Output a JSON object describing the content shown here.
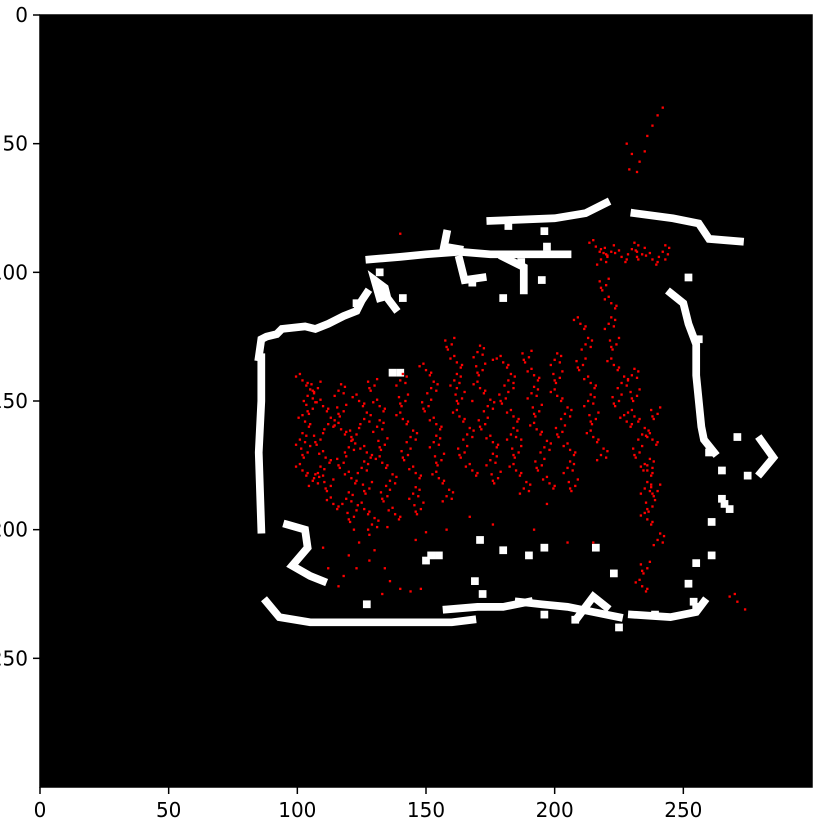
{
  "chart_data": {
    "type": "scatter",
    "title": "",
    "xlabel": "",
    "ylabel": "",
    "xlim": [
      0,
      300
    ],
    "ylim": [
      300,
      0
    ],
    "grid": false,
    "background": "#000000",
    "x_ticks": [
      0,
      50,
      100,
      150,
      200,
      250
    ],
    "x_tick_labels": [
      "0",
      "50",
      "100",
      "150",
      "200",
      "250"
    ],
    "y_ticks": [
      0,
      50,
      100,
      150,
      200,
      250
    ],
    "y_tick_labels": [
      "0",
      "50",
      "100",
      "150",
      "200",
      "250"
    ],
    "occupancy_color": "#ffffff",
    "point_color": "#ff0000",
    "occupied_cells_note_free": true,
    "occupied_segments": [
      [
        [
          85,
          133
        ],
        [
          86,
          126
        ],
        [
          88,
          125
        ],
        [
          92,
          124
        ],
        [
          94,
          122
        ],
        [
          103,
          121
        ],
        [
          107,
          122
        ],
        [
          112,
          120
        ],
        [
          118,
          117
        ],
        [
          123,
          115
        ],
        [
          125,
          111
        ],
        [
          127,
          108
        ]
      ],
      [
        [
          86,
          133
        ],
        [
          86,
          150
        ],
        [
          85,
          170
        ],
        [
          86,
          200
        ]
      ],
      [
        [
          128,
          95
        ],
        [
          140,
          94
        ],
        [
          150,
          93
        ],
        [
          163,
          92
        ],
        [
          175,
          93
        ],
        [
          190,
          93
        ],
        [
          205,
          93
        ]
      ],
      [
        [
          175,
          80
        ],
        [
          200,
          79
        ],
        [
          212,
          77
        ],
        [
          220,
          73
        ]
      ],
      [
        [
          231,
          77
        ],
        [
          246,
          79
        ],
        [
          256,
          81
        ],
        [
          260,
          87
        ],
        [
          272,
          88
        ]
      ],
      [
        [
          245,
          108
        ],
        [
          250,
          112
        ],
        [
          252,
          120
        ],
        [
          255,
          128
        ],
        [
          255,
          140
        ],
        [
          256,
          150
        ],
        [
          257,
          160
        ],
        [
          258,
          165
        ],
        [
          262,
          170
        ]
      ],
      [
        [
          88,
          228
        ],
        [
          93,
          234
        ],
        [
          105,
          236
        ],
        [
          130,
          236
        ],
        [
          148,
          236
        ],
        [
          160,
          236
        ],
        [
          168,
          235
        ]
      ],
      [
        [
          186,
          228
        ],
        [
          195,
          229
        ],
        [
          205,
          230
        ],
        [
          215,
          232
        ],
        [
          225,
          234
        ]
      ],
      [
        [
          230,
          233
        ],
        [
          245,
          234
        ],
        [
          255,
          232
        ],
        [
          258,
          228
        ]
      ],
      [
        [
          209,
          234
        ],
        [
          215,
          226
        ],
        [
          220,
          230
        ]
      ],
      [
        [
          158,
          231
        ],
        [
          170,
          230
        ],
        [
          180,
          230
        ],
        [
          190,
          228
        ]
      ],
      [
        [
          280,
          165
        ],
        [
          285,
          172
        ],
        [
          280,
          178
        ]
      ],
      [
        [
          96,
          198
        ],
        [
          103,
          200
        ],
        [
          104,
          207
        ],
        [
          98,
          214
        ],
        [
          105,
          218
        ],
        [
          110,
          220
        ]
      ],
      [
        [
          138,
          114
        ],
        [
          135,
          110
        ],
        [
          134,
          106
        ],
        [
          130,
          103
        ],
        [
          132,
          110
        ]
      ],
      [
        [
          180,
          94
        ],
        [
          188,
          98
        ],
        [
          188,
          107
        ]
      ],
      [
        [
          158,
          85
        ],
        [
          157,
          90
        ],
        [
          163,
          91
        ]
      ],
      [
        [
          163,
          95
        ],
        [
          165,
          103
        ],
        [
          172,
          102
        ]
      ]
    ],
    "occupied_blocks": [
      [
        132,
        100
      ],
      [
        141,
        110
      ],
      [
        168,
        104
      ],
      [
        180,
        110
      ],
      [
        187,
        96
      ],
      [
        195,
        103
      ],
      [
        197,
        90
      ],
      [
        182,
        82
      ],
      [
        196,
        84
      ],
      [
        252,
        102
      ],
      [
        256,
        126
      ],
      [
        260,
        170
      ],
      [
        265,
        177
      ],
      [
        265,
        188
      ],
      [
        268,
        192
      ],
      [
        266,
        190
      ],
      [
        261,
        197
      ],
      [
        261,
        210
      ],
      [
        255,
        213
      ],
      [
        252,
        221
      ],
      [
        254,
        228
      ],
      [
        275,
        179
      ],
      [
        271,
        164
      ],
      [
        137,
        139
      ],
      [
        140,
        139
      ],
      [
        123,
        112
      ],
      [
        152,
        210
      ],
      [
        155,
        210
      ],
      [
        150,
        212
      ],
      [
        171,
        204
      ],
      [
        180,
        208
      ],
      [
        190,
        210
      ],
      [
        196,
        207
      ],
      [
        216,
        207
      ],
      [
        223,
        217
      ],
      [
        127,
        229
      ],
      [
        169,
        220
      ],
      [
        172,
        225
      ],
      [
        196,
        233
      ],
      [
        208,
        235
      ],
      [
        225,
        238
      ],
      [
        239,
        233
      ],
      [
        255,
        230
      ]
    ],
    "points_dense": [
      [
        102,
        142
      ],
      [
        104,
        148
      ],
      [
        106,
        153
      ],
      [
        103,
        158
      ],
      [
        101,
        165
      ],
      [
        104,
        170
      ],
      [
        102,
        177
      ],
      [
        106,
        181
      ],
      [
        108,
        145
      ],
      [
        110,
        152
      ],
      [
        112,
        159
      ],
      [
        109,
        165
      ],
      [
        111,
        172
      ],
      [
        108,
        178
      ],
      [
        113,
        183
      ],
      [
        114,
        190
      ],
      [
        116,
        146
      ],
      [
        118,
        154
      ],
      [
        117,
        161
      ],
      [
        120,
        168
      ],
      [
        118,
        174
      ],
      [
        121,
        180
      ],
      [
        119,
        188
      ],
      [
        122,
        195
      ],
      [
        124,
        150
      ],
      [
        126,
        157
      ],
      [
        123,
        163
      ],
      [
        127,
        170
      ],
      [
        125,
        176
      ],
      [
        128,
        184
      ],
      [
        126,
        192
      ],
      [
        129,
        198
      ],
      [
        130,
        144
      ],
      [
        132,
        152
      ],
      [
        131,
        160
      ],
      [
        134,
        167
      ],
      [
        133,
        174
      ],
      [
        136,
        181
      ],
      [
        135,
        187
      ],
      [
        138,
        194
      ],
      [
        140,
        142
      ],
      [
        142,
        150
      ],
      [
        141,
        157
      ],
      [
        144,
        164
      ],
      [
        143,
        171
      ],
      [
        146,
        178
      ],
      [
        145,
        186
      ],
      [
        148,
        192
      ],
      [
        150,
        138
      ],
      [
        152,
        145
      ],
      [
        151,
        152
      ],
      [
        154,
        159
      ],
      [
        153,
        166
      ],
      [
        156,
        173
      ],
      [
        155,
        180
      ],
      [
        158,
        187
      ],
      [
        160,
        128
      ],
      [
        162,
        135
      ],
      [
        161,
        142
      ],
      [
        164,
        149
      ],
      [
        163,
        156
      ],
      [
        166,
        163
      ],
      [
        165,
        170
      ],
      [
        168,
        177
      ],
      [
        170,
        131
      ],
      [
        172,
        138
      ],
      [
        171,
        145
      ],
      [
        174,
        152
      ],
      [
        173,
        159
      ],
      [
        176,
        166
      ],
      [
        175,
        173
      ],
      [
        178,
        180
      ],
      [
        180,
        135
      ],
      [
        182,
        142
      ],
      [
        181,
        149
      ],
      [
        184,
        156
      ],
      [
        183,
        163
      ],
      [
        186,
        170
      ],
      [
        185,
        177
      ],
      [
        188,
        184
      ],
      [
        190,
        133
      ],
      [
        192,
        140
      ],
      [
        191,
        147
      ],
      [
        194,
        154
      ],
      [
        193,
        161
      ],
      [
        196,
        168
      ],
      [
        195,
        175
      ],
      [
        198,
        182
      ],
      [
        200,
        134
      ],
      [
        202,
        141
      ],
      [
        201,
        148
      ],
      [
        204,
        155
      ],
      [
        203,
        162
      ],
      [
        206,
        169
      ],
      [
        205,
        176
      ],
      [
        208,
        183
      ],
      [
        210,
        120
      ],
      [
        212,
        128
      ],
      [
        211,
        136
      ],
      [
        214,
        143
      ],
      [
        213,
        150
      ],
      [
        216,
        157
      ],
      [
        215,
        164
      ],
      [
        218,
        171
      ],
      [
        220,
        105
      ],
      [
        222,
        112
      ],
      [
        221,
        120
      ],
      [
        224,
        128
      ],
      [
        223,
        136
      ],
      [
        226,
        143
      ],
      [
        225,
        150
      ],
      [
        228,
        158
      ],
      [
        230,
        140
      ],
      [
        232,
        148
      ],
      [
        231,
        156
      ],
      [
        234,
        163
      ],
      [
        233,
        170
      ],
      [
        236,
        177
      ],
      [
        235,
        184
      ],
      [
        238,
        191
      ],
      [
        216,
        90
      ],
      [
        218,
        95
      ],
      [
        222,
        92
      ],
      [
        226,
        94
      ],
      [
        230,
        91
      ],
      [
        234,
        93
      ],
      [
        238,
        95
      ],
      [
        242,
        92
      ],
      [
        240,
        155
      ],
      [
        238,
        165
      ],
      [
        236,
        175
      ],
      [
        240,
        185
      ],
      [
        236,
        196
      ],
      [
        240,
        204
      ],
      [
        236,
        215
      ],
      [
        234,
        222
      ]
    ],
    "points_sparse": [
      [
        122,
        200
      ],
      [
        124,
        205
      ],
      [
        120,
        210
      ],
      [
        123,
        215
      ],
      [
        118,
        218
      ],
      [
        128,
        212
      ],
      [
        130,
        208
      ],
      [
        134,
        215
      ],
      [
        136,
        220
      ],
      [
        140,
        223
      ],
      [
        144,
        224
      ],
      [
        148,
        223
      ],
      [
        133,
        225
      ],
      [
        116,
        222
      ],
      [
        112,
        215
      ],
      [
        110,
        207
      ],
      [
        228,
        50
      ],
      [
        230,
        54
      ],
      [
        233,
        57
      ],
      [
        236,
        47
      ],
      [
        238,
        43
      ],
      [
        240,
        39
      ],
      [
        242,
        36
      ],
      [
        235,
        53
      ],
      [
        229,
        60
      ],
      [
        232,
        61
      ],
      [
        140,
        85
      ],
      [
        270,
        225
      ],
      [
        274,
        231
      ],
      [
        271,
        228
      ],
      [
        268,
        226
      ],
      [
        243,
        95
      ],
      [
        176,
        134
      ],
      [
        162,
        145
      ],
      [
        184,
        145
      ],
      [
        168,
        150
      ],
      [
        187,
        165
      ],
      [
        158,
        200
      ],
      [
        176,
        198
      ],
      [
        192,
        200
      ],
      [
        205,
        205
      ],
      [
        215,
        205
      ],
      [
        197,
        190
      ],
      [
        167,
        195
      ],
      [
        146,
        204
      ],
      [
        150,
        201
      ],
      [
        135,
        199
      ],
      [
        128,
        202
      ]
    ]
  }
}
